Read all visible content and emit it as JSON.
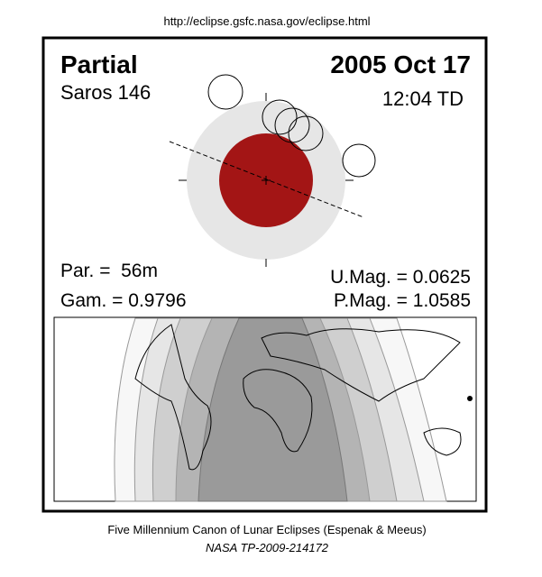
{
  "header": {
    "url": "http://eclipse.gsfc.nasa.gov/eclipse.html"
  },
  "eclipse": {
    "type": "Partial",
    "date": "2005 Oct 17",
    "saros": "Saros 146",
    "time": "12:04 TD",
    "duration": "Par. =  56m",
    "gamma": "Gam. = 0.9796",
    "umbral_mag": "U.Mag. = 0.0625",
    "penumbral_mag": "P.Mag. = 1.0585"
  },
  "footer": {
    "line1": "Five Millennium Canon of Lunar Eclipses (Espenak & Meeus)",
    "line2": "NASA TP-2009-214172"
  }
}
